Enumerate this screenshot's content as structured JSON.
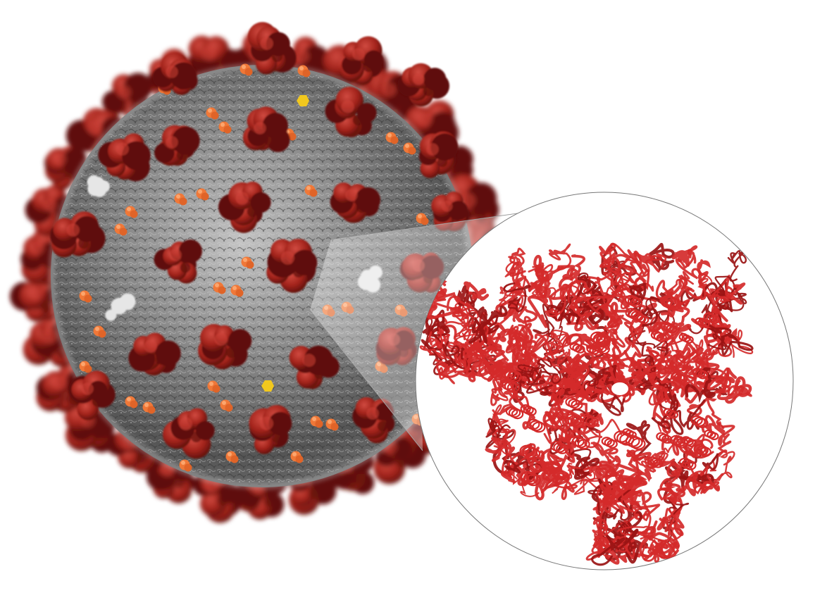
{
  "scene": {
    "background_color": "#ffffff",
    "virion": {
      "description_icon": "coronavirus-virion-illustration",
      "envelope_color": "#8e8e8e",
      "envelope_highlight": "#c9c9c9",
      "envelope_shadow": "#3f3f3f",
      "spike_color": "#a8241c",
      "spike_shadow": "#5e0f0b",
      "spike_highlight": "#d0443a",
      "membrane_protein_color": "#f07838",
      "envelope_protein_color": "#f2c81e",
      "white_protein_color": "#e6e6e6"
    },
    "zoom_inset": {
      "description_icon": "spike-protein-ribbon-structure",
      "border_color": "#777777",
      "fill_color": "#ffffff",
      "ribbon_color": "#d42a2a",
      "ribbon_dark": "#9a1414"
    }
  }
}
